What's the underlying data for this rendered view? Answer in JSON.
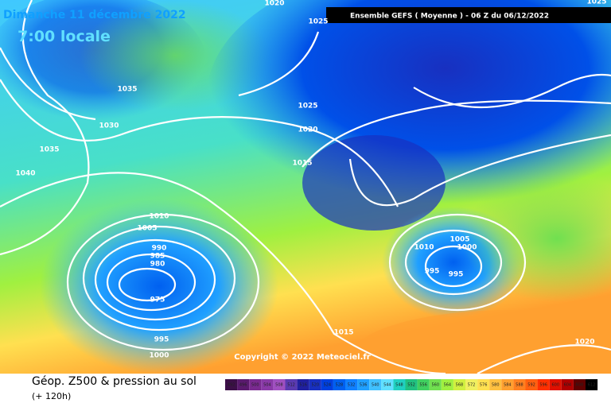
{
  "header": {
    "date": "Dimanche 11 décembre 2022",
    "time": "7:00 locale",
    "run": "Ensemble GEFS  ( Moyenne )  -  06 Z du 06/12/2022"
  },
  "copyright": "Copyright © 2022 Meteociel.fr",
  "footer": {
    "title": "Géop. Z500 & pression au sol",
    "lead": "(+ 120h)"
  },
  "isobar_labels": [
    1020,
    1025,
    1025,
    1035,
    1030,
    1035,
    1040,
    1025,
    1020,
    1015,
    1010,
    1005,
    990,
    985,
    980,
    975,
    995,
    1000,
    1010,
    1005,
    1000,
    995,
    995,
    1015,
    1020
  ],
  "scale": {
    "values": [
      492,
      496,
      500,
      504,
      508,
      512,
      516,
      520,
      524,
      528,
      532,
      536,
      540,
      544,
      548,
      552,
      556,
      560,
      564,
      568,
      572,
      576,
      580,
      584,
      588,
      592,
      596,
      600,
      604,
      608,
      612
    ],
    "colors": [
      "#3c0f48",
      "#5a1a6e",
      "#7a2a90",
      "#8a3aa8",
      "#a050c0",
      "#5a3ab0",
      "#2020a0",
      "#1830c0",
      "#0040e0",
      "#0060f0",
      "#1080ff",
      "#20a0ff",
      "#40c0ff",
      "#60e0ff",
      "#20d0c0",
      "#20c080",
      "#40d060",
      "#70e050",
      "#a0f040",
      "#d0f040",
      "#f0f060",
      "#ffe050",
      "#ffc040",
      "#ffa030",
      "#ff8020",
      "#ff6010",
      "#ff3000",
      "#e01000",
      "#b00000",
      "#600000",
      "#000000"
    ]
  }
}
